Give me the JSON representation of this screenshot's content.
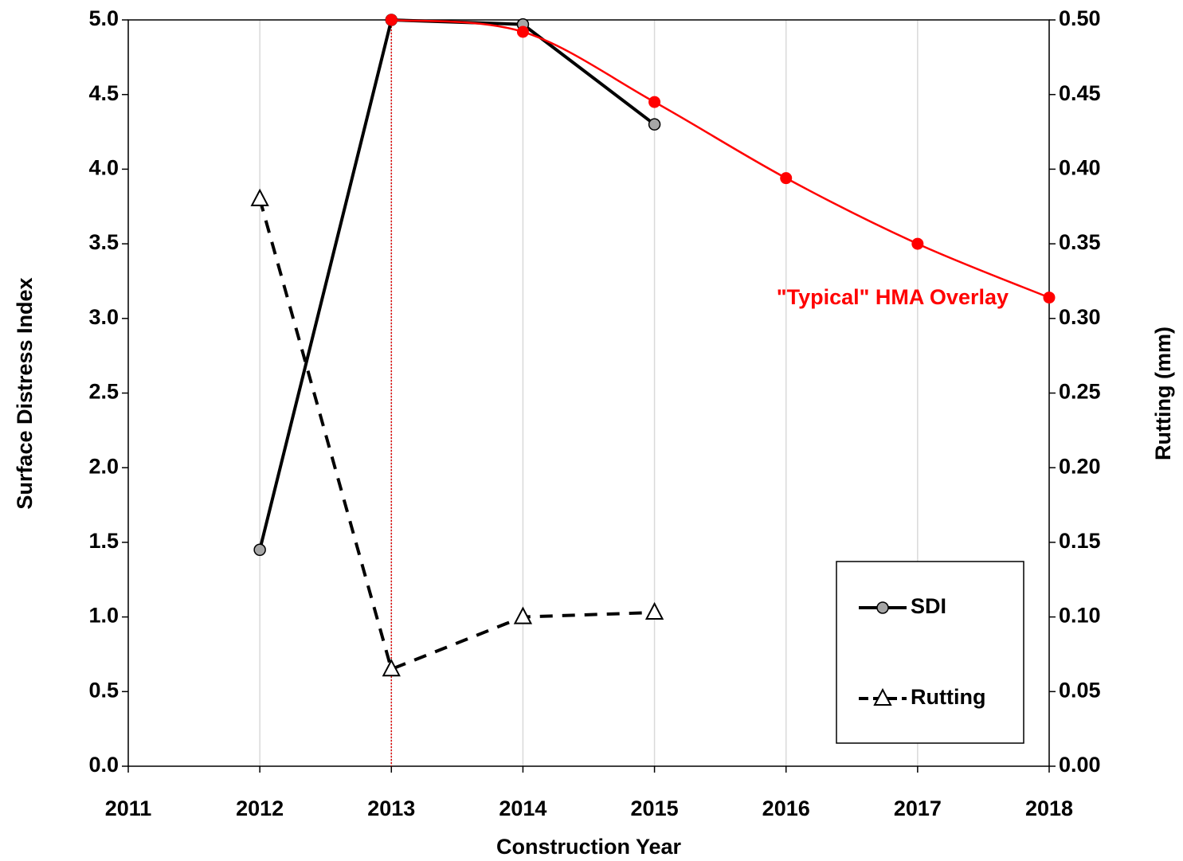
{
  "chart_data": {
    "type": "line",
    "xlabel": "Construction Year",
    "ylabel": "Surface Distress Index",
    "y2label": "Rutting (mm)",
    "xlim": [
      2011,
      2018
    ],
    "xticks": [
      2011,
      2012,
      2013,
      2014,
      2015,
      2016,
      2017,
      2018
    ],
    "ylim": [
      0,
      5
    ],
    "yticks": [
      {
        "value": 0,
        "label": "0.0"
      },
      0.5,
      {
        "value": 1,
        "label": "1.0"
      },
      1.5,
      {
        "value": 2,
        "label": "2.0"
      },
      2.5,
      {
        "value": 3,
        "label": "3.0"
      },
      3.5,
      {
        "value": 4,
        "label": "4.0"
      },
      4.5,
      {
        "value": 5,
        "label": "5.0"
      }
    ],
    "y2lim": [
      0,
      0.5
    ],
    "y2ticks": [
      {
        "value": 0,
        "label": "0.00"
      },
      0.05,
      {
        "value": 0.1,
        "label": "0.10"
      },
      0.15,
      {
        "value": 0.2,
        "label": "0.20"
      },
      0.25,
      {
        "value": 0.3,
        "label": "0.30"
      },
      0.35,
      {
        "value": 0.4,
        "label": "0.40"
      },
      0.45,
      {
        "value": 0.5,
        "label": "0.50"
      }
    ],
    "grid": "x",
    "legend": "lower right",
    "vline": 2013,
    "vline_color": "#e00000",
    "annotation": "\"Typical\" HMA Overlay",
    "series": [
      {
        "name": "SDI",
        "color": "#000000",
        "marker": "circle",
        "marker_fill": "#a6a6a6",
        "dash": false,
        "x": [
          2012,
          2013,
          2014,
          2015
        ],
        "values": [
          1.45,
          5.0,
          4.97,
          4.3
        ]
      },
      {
        "name": "Rutting",
        "color": "#000000",
        "marker": "triangle",
        "marker_fill": "#ffffff",
        "dash": true,
        "axis": "y2",
        "x": [
          2012,
          2013,
          2014,
          2015
        ],
        "values": [
          0.38,
          0.065,
          0.1,
          0.103
        ]
      },
      {
        "color": "#ff0000",
        "marker": "dot",
        "marker_fill": "#ff0000",
        "dash": false,
        "smooth": true,
        "x": [
          2013,
          2014,
          2015,
          2016,
          2017,
          2018
        ],
        "values": [
          5.0,
          4.92,
          4.45,
          3.94,
          3.5,
          3.14
        ]
      }
    ]
  }
}
